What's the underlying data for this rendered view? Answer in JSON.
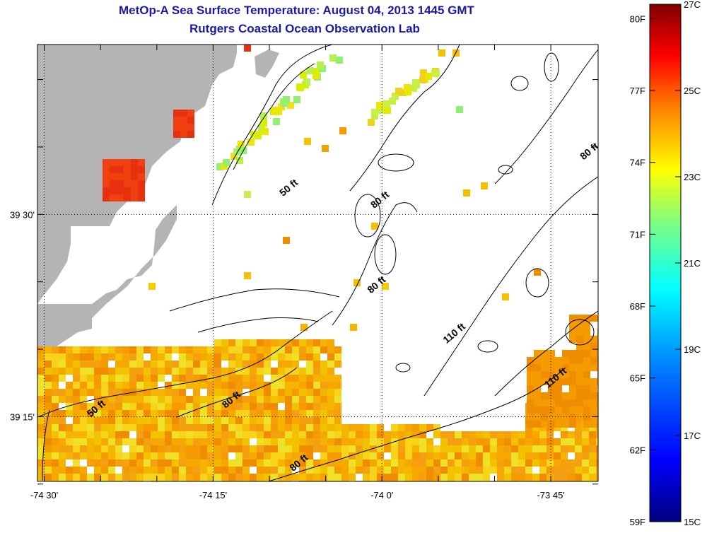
{
  "title": {
    "line1": "MetOp-A Sea Surface Temperature:  August 04, 2013 1445 GMT",
    "line2": "Rutgers Coastal Ocean Observation Lab"
  },
  "axes": {
    "x_ticks": [
      {
        "lon": -74.5,
        "label": "-74 30'"
      },
      {
        "lon": -74.25,
        "label": "-74 15'"
      },
      {
        "lon": -74.0,
        "label": "-74 0'"
      },
      {
        "lon": -73.75,
        "label": "-73 45'"
      }
    ],
    "y_ticks": [
      {
        "lat": 39.5,
        "label": "39 30'"
      },
      {
        "lat": 39.25,
        "label": "39 15'"
      }
    ]
  },
  "colorbar": {
    "f_labels": [
      "80F",
      "77F",
      "74F",
      "71F",
      "68F",
      "65F",
      "62F",
      "59F"
    ],
    "c_labels": [
      "27C",
      "25C",
      "23C",
      "21C",
      "19C",
      "17C",
      "15C"
    ],
    "gradient": [
      "#000080",
      "#0000ff",
      "#0080ff",
      "#00ffff",
      "#80ff80",
      "#ffff00",
      "#ff8000",
      "#ff0000",
      "#800000"
    ]
  },
  "contours": [
    {
      "label": "50 ft",
      "lon": -74.135,
      "lat": 39.53
    },
    {
      "label": "80 ft",
      "lon": -74.0,
      "lat": 39.515
    },
    {
      "label": "80 ft",
      "lon": -73.69,
      "lat": 39.575
    },
    {
      "label": "80 ft",
      "lon": -74.005,
      "lat": 39.41
    },
    {
      "label": "110 ft",
      "lon": -73.89,
      "lat": 39.35
    },
    {
      "label": "110 ft",
      "lon": -73.74,
      "lat": 39.295
    },
    {
      "label": "50 ft",
      "lon": -74.42,
      "lat": 39.257
    },
    {
      "label": "80 ft",
      "lon": -74.22,
      "lat": 39.268
    },
    {
      "label": "80 ft",
      "lon": -74.12,
      "lat": 39.19
    }
  ],
  "colors": {
    "land": "#b4b4b4",
    "title": "#1a1aa6"
  }
}
